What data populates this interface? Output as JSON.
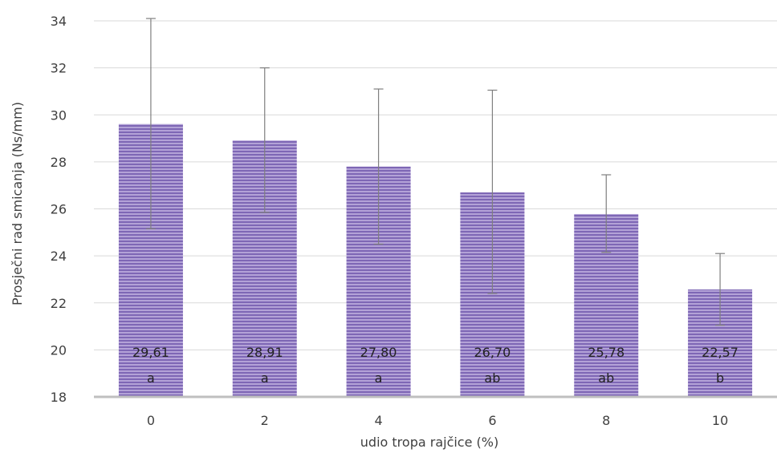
{
  "chart_data": {
    "type": "bar",
    "title": "",
    "xlabel": "udio tropa rajčice (%)",
    "ylabel": "Prosječni rad smicanja (Ns/mm)",
    "ylim": [
      18,
      34
    ],
    "yticks": [
      "18",
      "20",
      "22",
      "24",
      "26",
      "28",
      "30",
      "32",
      "34"
    ],
    "categories": [
      "0",
      "2",
      "4",
      "6",
      "8",
      "10"
    ],
    "values": [
      29.61,
      28.91,
      27.8,
      26.7,
      25.78,
      22.57
    ],
    "value_labels": [
      "29,61",
      "28,91",
      "27,80",
      "26,70",
      "25,78",
      "22,57"
    ],
    "group_letters": [
      "a",
      "a",
      "a",
      "ab",
      "ab",
      "b"
    ],
    "error_low": [
      25.15,
      25.85,
      24.5,
      22.4,
      24.15,
      21.05
    ],
    "error_high": [
      34.1,
      32.0,
      31.1,
      31.05,
      27.45,
      24.1
    ],
    "grid": true,
    "legend": "none",
    "colors": {
      "bar_fill": "#b3a2d7",
      "bar_stripe": "#7e67b5",
      "error_bar": "#7f7f7f",
      "gridline": "#d9d9d9",
      "baseline": "#bfbfbf"
    }
  }
}
